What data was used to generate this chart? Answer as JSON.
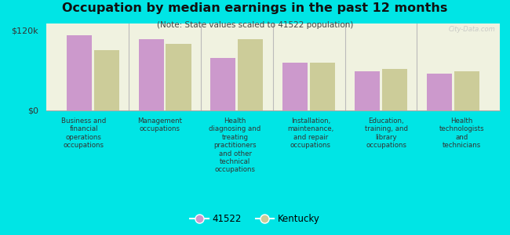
{
  "title": "Occupation by median earnings in the past 12 months",
  "subtitle": "(Note: State values scaled to 41522 population)",
  "categories": [
    "Business and\nfinancial\noperations\noccupations",
    "Management\noccupations",
    "Health\ndiagnosing and\ntreating\npractitioners\nand other\ntechnical\noccupations",
    "Installation,\nmaintenance,\nand repair\noccupations",
    "Education,\ntraining, and\nlibrary\noccupations",
    "Health\ntechnologists\nand\ntechnicians"
  ],
  "values_41522": [
    113000,
    107000,
    78000,
    72000,
    58000,
    55000
  ],
  "values_kentucky": [
    90000,
    100000,
    107000,
    72000,
    62000,
    58000
  ],
  "color_41522": "#cc99cc",
  "color_kentucky": "#cccc99",
  "background_chart": "#f0f2e0",
  "background_fig": "#00e5e5",
  "ylim": [
    0,
    130000
  ],
  "yticks": [
    0,
    120000
  ],
  "ytick_labels": [
    "$0",
    "$120k"
  ],
  "legend_label_41522": "41522",
  "legend_label_kentucky": "Kentucky",
  "watermark": "City-Data.com"
}
